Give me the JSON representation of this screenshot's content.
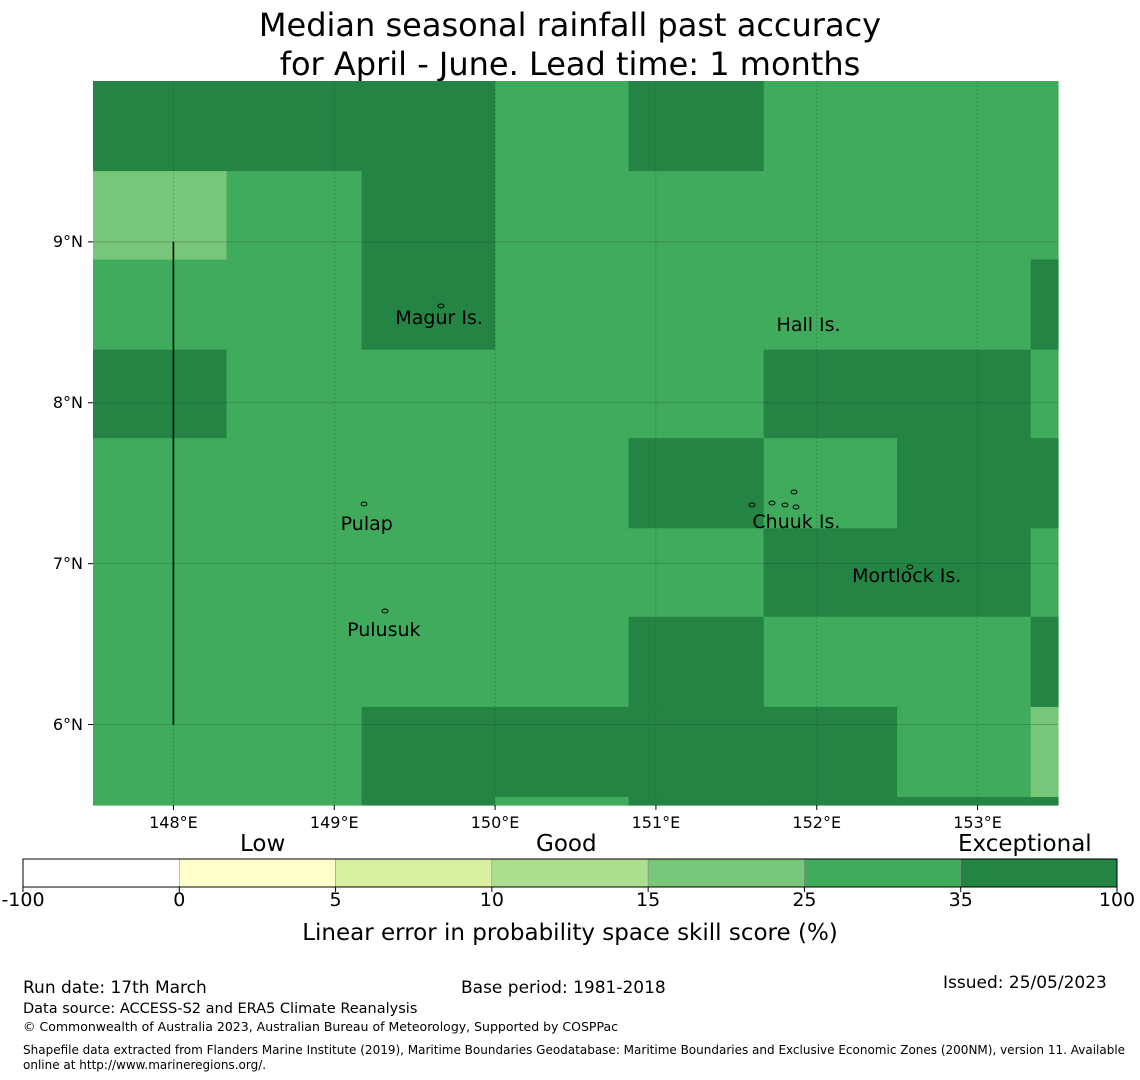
{
  "title": {
    "line1": "Median seasonal rainfall past accuracy",
    "line2": "for April - June. Lead time: 1 months"
  },
  "map": {
    "lon_range": [
      147.5,
      153.5
    ],
    "lat_range": [
      5.5,
      10.0
    ],
    "lon_ticks": [
      {
        "value": 148,
        "label": "148°E"
      },
      {
        "value": 149,
        "label": "149°E"
      },
      {
        "value": 150,
        "label": "150°E"
      },
      {
        "value": 151,
        "label": "151°E"
      },
      {
        "value": 152,
        "label": "152°E"
      },
      {
        "value": 153,
        "label": "153°E"
      }
    ],
    "lat_ticks": [
      {
        "value": 9,
        "label": "9°N"
      },
      {
        "value": 8,
        "label": "8°N"
      },
      {
        "value": 7,
        "label": "7°N"
      },
      {
        "value": 6,
        "label": "6°N"
      }
    ],
    "islands": [
      {
        "name": "Magur Is.",
        "lon": 149.38,
        "lat": 8.52
      },
      {
        "name": "Hall Is.",
        "lon": 151.75,
        "lat": 8.48
      },
      {
        "name": "Pulap",
        "lon": 149.04,
        "lat": 7.24
      },
      {
        "name": "Chuuk Is.",
        "lon": 151.6,
        "lat": 7.25
      },
      {
        "name": "Mortlock Is.",
        "lon": 152.22,
        "lat": 6.92
      },
      {
        "name": "Pulusuk",
        "lon": 149.08,
        "lat": 6.58
      }
    ],
    "boundary_line": {
      "lon": 148.0,
      "lat_from": 6.0,
      "lat_to": 9.0
    },
    "grid": {
      "lon_edges": [
        147.5,
        148.33,
        149.17,
        150.0,
        150.83,
        151.67,
        152.5,
        153.33,
        153.5
      ],
      "lat_edges": [
        10.0,
        9.44,
        8.89,
        8.33,
        7.78,
        7.22,
        6.67,
        6.11,
        5.55,
        5.5
      ],
      "cells": [
        [
          3,
          3,
          3,
          2,
          3,
          2,
          2,
          2
        ],
        [
          1,
          2,
          3,
          2,
          2,
          2,
          2,
          2
        ],
        [
          2,
          2,
          3,
          2,
          2,
          2,
          2,
          3
        ],
        [
          3,
          2,
          2,
          2,
          2,
          3,
          3,
          2
        ],
        [
          2,
          2,
          2,
          2,
          3,
          2,
          3,
          3
        ],
        [
          2,
          2,
          2,
          2,
          2,
          3,
          3,
          2
        ],
        [
          2,
          2,
          2,
          2,
          3,
          2,
          2,
          3
        ],
        [
          2,
          2,
          3,
          3,
          3,
          3,
          2,
          1
        ],
        [
          2,
          2,
          3,
          2,
          3,
          3,
          3,
          3
        ]
      ]
    }
  },
  "colorbar": {
    "words": {
      "low": "Low",
      "good": "Good",
      "exceptional": "Exceptional"
    },
    "tick_labels": [
      "-100",
      "0",
      "5",
      "10",
      "15",
      "25",
      "35",
      "100"
    ],
    "colors": [
      "#ffffff",
      "#ffffcc",
      "#d9f0a3",
      "#addd8e",
      "#78c679",
      "#41ab5d",
      "#238443"
    ],
    "label": "Linear error in probability space skill score (%)"
  },
  "footer": {
    "run_date": "Run date: 17th March",
    "base_period": "Base period: 1981-2018",
    "issued": "Issued: 25/05/2023",
    "data_source": "Data source: ACCESS-S2 and ERA5 Climate Reanalysis",
    "copyright": "© Commonwealth of Australia 2023, Australian Bureau of Meteorology, Supported by COSPPac",
    "shapefile_line1": "Shapefile data extracted from Flanders Marine Institute (2019), Maritime Boundaries Geodatabase: Maritime Boundaries and Exclusive Economic Zones (200NM), version 11. Available",
    "shapefile_line2": "online at http://www.marineregions.org/."
  }
}
